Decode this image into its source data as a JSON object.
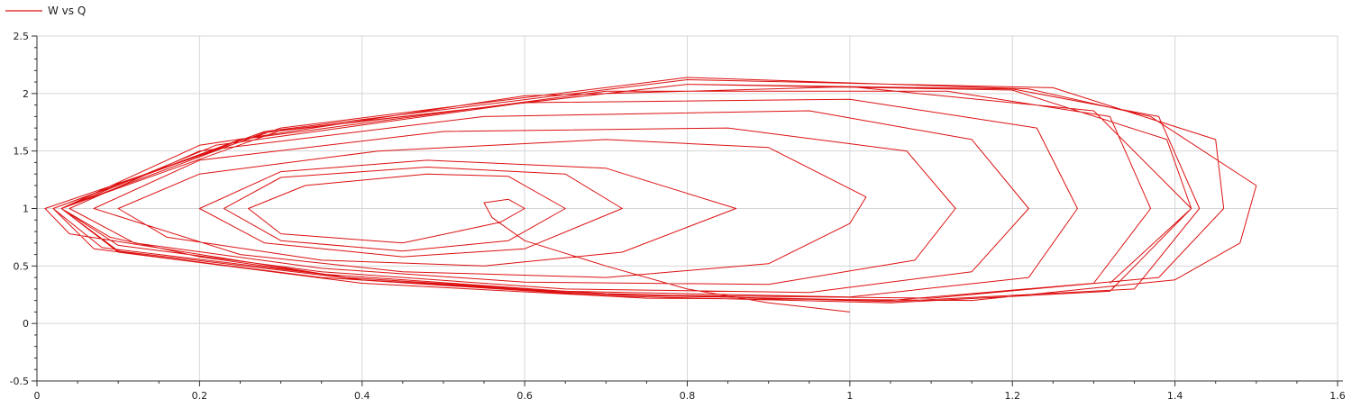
{
  "legend": {
    "label": "W vs Q",
    "placement": "top-left"
  },
  "colors": {
    "series": "#dd1111",
    "grid": "#d6d6d6",
    "axis": "#303030",
    "text": "#202020"
  },
  "chart_data": {
    "type": "line",
    "title": "",
    "xlabel": "",
    "ylabel": "",
    "xlim": [
      0,
      1.6
    ],
    "ylim": [
      -0.5,
      2.5
    ],
    "x_ticks": [
      "0",
      "0.2",
      "0.4",
      "0.6",
      "0.8",
      "1",
      "1.2",
      "1.4",
      "1.6"
    ],
    "y_ticks": [
      "-0.5",
      "0",
      "0.5",
      "1",
      "1.5",
      "2",
      "2.5"
    ],
    "grid": true,
    "legend_placement": "top-left",
    "series": [
      {
        "name": "W vs Q",
        "color": "#dd1111",
        "points": [
          [
            1.0,
            0.1
          ],
          [
            0.9,
            0.18
          ],
          [
            0.8,
            0.3
          ],
          [
            0.7,
            0.5
          ],
          [
            0.6,
            0.72
          ],
          [
            0.56,
            0.92
          ],
          [
            0.55,
            1.05
          ],
          [
            0.58,
            1.08
          ],
          [
            0.6,
            1.0
          ],
          [
            0.57,
            0.88
          ],
          [
            0.45,
            0.7
          ],
          [
            0.3,
            0.78
          ],
          [
            0.26,
            1.0
          ],
          [
            0.33,
            1.2
          ],
          [
            0.48,
            1.3
          ],
          [
            0.58,
            1.28
          ],
          [
            0.65,
            1.0
          ],
          [
            0.58,
            0.72
          ],
          [
            0.45,
            0.63
          ],
          [
            0.3,
            0.72
          ],
          [
            0.23,
            1.0
          ],
          [
            0.3,
            1.27
          ],
          [
            0.48,
            1.36
          ],
          [
            0.65,
            1.3
          ],
          [
            0.72,
            1.0
          ],
          [
            0.6,
            0.65
          ],
          [
            0.45,
            0.58
          ],
          [
            0.28,
            0.7
          ],
          [
            0.2,
            1.0
          ],
          [
            0.3,
            1.32
          ],
          [
            0.48,
            1.42
          ],
          [
            0.7,
            1.35
          ],
          [
            0.86,
            1.0
          ],
          [
            0.72,
            0.62
          ],
          [
            0.55,
            0.5
          ],
          [
            0.35,
            0.55
          ],
          [
            0.16,
            0.75
          ],
          [
            0.1,
            1.0
          ],
          [
            0.2,
            1.3
          ],
          [
            0.42,
            1.5
          ],
          [
            0.7,
            1.6
          ],
          [
            0.9,
            1.53
          ],
          [
            1.02,
            1.1
          ],
          [
            1.0,
            0.87
          ],
          [
            0.9,
            0.52
          ],
          [
            0.7,
            0.4
          ],
          [
            0.45,
            0.45
          ],
          [
            0.25,
            0.6
          ],
          [
            0.07,
            1.0
          ],
          [
            0.2,
            1.42
          ],
          [
            0.5,
            1.67
          ],
          [
            0.85,
            1.7
          ],
          [
            1.07,
            1.5
          ],
          [
            1.13,
            1.0
          ],
          [
            1.08,
            0.55
          ],
          [
            0.9,
            0.34
          ],
          [
            0.6,
            0.36
          ],
          [
            0.35,
            0.48
          ],
          [
            0.12,
            0.7
          ],
          [
            0.04,
            1.0
          ],
          [
            0.2,
            1.5
          ],
          [
            0.55,
            1.8
          ],
          [
            0.95,
            1.85
          ],
          [
            1.15,
            1.6
          ],
          [
            1.22,
            1.0
          ],
          [
            1.15,
            0.45
          ],
          [
            0.95,
            0.27
          ],
          [
            0.65,
            0.3
          ],
          [
            0.35,
            0.45
          ],
          [
            0.1,
            0.68
          ],
          [
            0.03,
            1.0
          ],
          [
            0.22,
            1.55
          ],
          [
            0.6,
            1.92
          ],
          [
            1.0,
            1.95
          ],
          [
            1.23,
            1.7
          ],
          [
            1.28,
            1.0
          ],
          [
            1.22,
            0.4
          ],
          [
            1.0,
            0.23
          ],
          [
            0.65,
            0.28
          ],
          [
            0.35,
            0.43
          ],
          [
            0.08,
            0.66
          ],
          [
            0.02,
            1.0
          ],
          [
            0.25,
            1.6
          ],
          [
            0.7,
            2.02
          ],
          [
            1.12,
            2.02
          ],
          [
            1.32,
            1.8
          ],
          [
            1.37,
            1.0
          ],
          [
            1.3,
            0.35
          ],
          [
            1.05,
            0.2
          ],
          [
            0.7,
            0.25
          ],
          [
            0.4,
            0.38
          ],
          [
            0.1,
            0.63
          ],
          [
            0.03,
            1.0
          ],
          [
            0.3,
            1.68
          ],
          [
            0.8,
            2.08
          ],
          [
            1.2,
            2.03
          ],
          [
            1.39,
            1.6
          ],
          [
            1.42,
            1.0
          ],
          [
            1.32,
            0.28
          ],
          [
            1.05,
            0.18
          ],
          [
            0.7,
            0.24
          ],
          [
            0.35,
            0.4
          ],
          [
            0.07,
            0.65
          ],
          [
            0.02,
            1.0
          ],
          [
            0.28,
            1.67
          ],
          [
            0.8,
            2.12
          ],
          [
            1.25,
            2.05
          ],
          [
            1.45,
            1.6
          ],
          [
            1.46,
            1.0
          ],
          [
            1.38,
            0.4
          ],
          [
            1.1,
            0.22
          ],
          [
            0.72,
            0.25
          ],
          [
            0.38,
            0.4
          ],
          [
            0.04,
            0.78
          ],
          [
            0.01,
            1.0
          ],
          [
            0.3,
            1.7
          ],
          [
            0.8,
            2.14
          ],
          [
            1.22,
            2.04
          ],
          [
            1.37,
            1.8
          ],
          [
            1.5,
            1.2
          ],
          [
            1.48,
            0.7
          ],
          [
            1.4,
            0.38
          ],
          [
            1.15,
            0.2
          ],
          [
            0.75,
            0.22
          ],
          [
            0.4,
            0.35
          ],
          [
            0.1,
            0.62
          ],
          [
            0.03,
            1.0
          ],
          [
            0.28,
            1.66
          ],
          [
            0.8,
            2.08
          ],
          [
            1.2,
            2.04
          ],
          [
            1.38,
            1.8
          ],
          [
            1.43,
            1.0
          ],
          [
            1.35,
            0.3
          ],
          [
            1.05,
            0.19
          ],
          [
            0.7,
            0.26
          ],
          [
            0.4,
            0.38
          ],
          [
            0.2,
            0.58
          ],
          [
            0.09,
            0.75
          ],
          [
            0.03,
            1.0
          ],
          [
            0.2,
            1.55
          ],
          [
            0.6,
            1.98
          ],
          [
            1.0,
            2.06
          ],
          [
            1.3,
            1.85
          ],
          [
            1.42,
            1.0
          ],
          [
            1.32,
            0.35
          ]
        ]
      }
    ]
  }
}
